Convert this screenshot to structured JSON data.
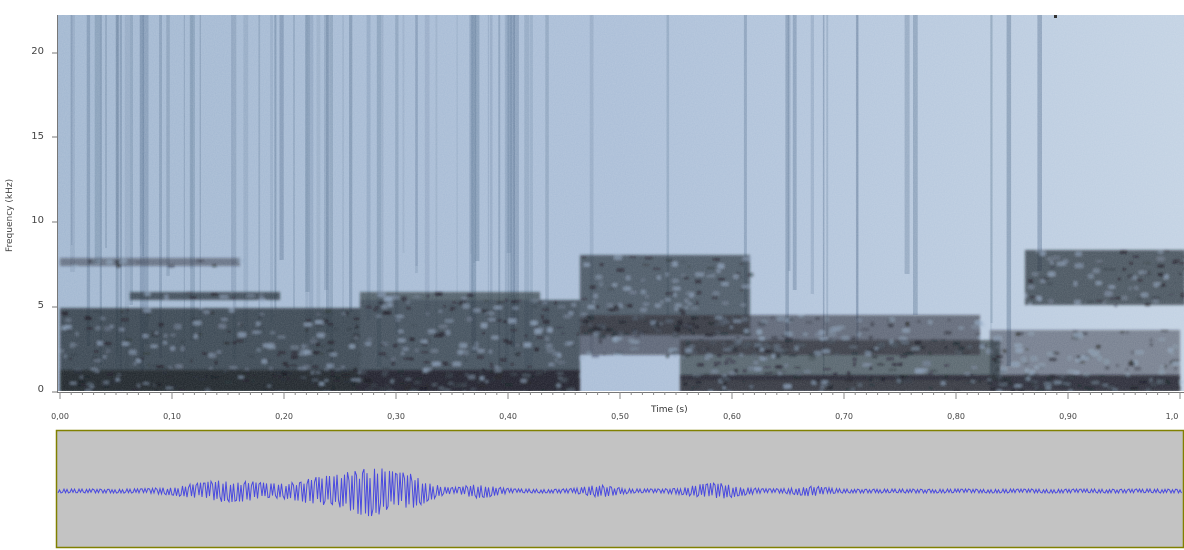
{
  "spectrogram": {
    "y_axis_label": "Frequency (kHz)",
    "y_ticks": [
      "0",
      "5",
      "10",
      "15",
      "20"
    ],
    "x_axis_label": "Time (s)",
    "x_ticks": [
      "0,00",
      "0,10",
      "0,20",
      "0,30",
      "0,40",
      "0,50",
      "0,60",
      "0,70",
      "0,80",
      "0,90",
      "1,0"
    ],
    "background_color": "#a9bfd9",
    "energy_color": "#12161d"
  },
  "waveform": {
    "background_color": "#c3c3c3",
    "border_color": "#808000",
    "line_color": "#4a4adf"
  }
}
